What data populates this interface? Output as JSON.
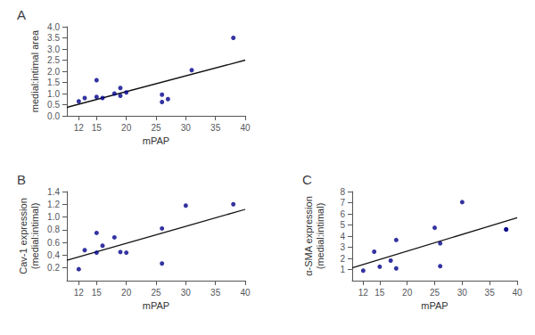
{
  "chart_data": [
    {
      "type": "scatter",
      "title": "A",
      "xlabel": "mPAP",
      "ylabel": "medial:intimal area",
      "xlim": [
        10,
        40
      ],
      "ylim": [
        0,
        4.0
      ],
      "xticks": [
        12,
        15,
        20,
        25,
        30,
        35,
        40
      ],
      "yticks": [
        {
          "value": 0,
          "label": "0.0"
        },
        0.5,
        {
          "value": 1.0,
          "label": "1.0"
        },
        1.5,
        {
          "value": 2.0,
          "label": "2.0"
        },
        2.5,
        {
          "value": 3.0,
          "label": "3.0"
        },
        3.5,
        {
          "value": 4.0,
          "label": "4.0"
        }
      ],
      "grid": false,
      "series": [
        {
          "type": "scatter",
          "color": "#00008B",
          "x": [
            12,
            13,
            15,
            15,
            16,
            18,
            19,
            19,
            20,
            26,
            26,
            27,
            31,
            38
          ],
          "values": [
            0.65,
            0.8,
            0.85,
            1.6,
            0.8,
            1.0,
            1.25,
            0.9,
            1.05,
            0.62,
            0.95,
            0.75,
            2.05,
            3.5
          ]
        },
        {
          "type": "line",
          "color": "#111111",
          "x": [
            10,
            40
          ],
          "values": [
            0.38,
            2.5
          ]
        }
      ]
    },
    {
      "type": "scatter",
      "title": "B",
      "xlabel": "mPAP",
      "ylabel": "Cav-1 expression\n(medial:intimal)",
      "xlim": [
        10,
        40
      ],
      "ylim": [
        0,
        1.4
      ],
      "xticks": [
        12,
        15,
        20,
        25,
        30,
        35,
        40
      ],
      "yticks": [
        0.2,
        0.4,
        0.6,
        0.8,
        {
          "value": 1.0,
          "label": "1.0"
        },
        1.2,
        1.4
      ],
      "grid": false,
      "series": [
        {
          "type": "scatter",
          "color": "#00008B",
          "x": [
            12,
            13,
            15,
            15,
            16,
            18,
            19,
            20,
            26,
            26,
            30,
            38
          ],
          "values": [
            0.18,
            0.48,
            0.44,
            0.75,
            0.55,
            0.68,
            0.45,
            0.44,
            0.82,
            0.27,
            1.18,
            1.2
          ]
        },
        {
          "type": "line",
          "color": "#111111",
          "x": [
            10,
            40
          ],
          "values": [
            0.32,
            1.12
          ]
        }
      ]
    },
    {
      "type": "scatter",
      "title": "C",
      "xlabel": "mPAP",
      "ylabel": "α-SMA expression\n(medial:intimal)",
      "xlim": [
        10,
        40
      ],
      "ylim": [
        0,
        8.0
      ],
      "xticks": [
        12,
        15,
        20,
        25,
        30,
        35,
        40
      ],
      "yticks": [
        1.0,
        2.0,
        3.0,
        4.0,
        5.0,
        6.0,
        7.0,
        8.0
      ],
      "grid": false,
      "series": [
        {
          "type": "scatter",
          "color": "#00008B",
          "x": [
            12,
            14,
            15,
            17,
            18,
            18,
            25,
            26,
            26,
            30,
            38,
            38
          ],
          "values": [
            0.9,
            2.6,
            1.25,
            1.8,
            3.65,
            1.1,
            4.75,
            1.3,
            3.35,
            7.05,
            4.6,
            4.6
          ]
        },
        {
          "type": "line",
          "color": "#111111",
          "x": [
            10,
            40
          ],
          "values": [
            1.15,
            5.65
          ]
        }
      ]
    }
  ]
}
